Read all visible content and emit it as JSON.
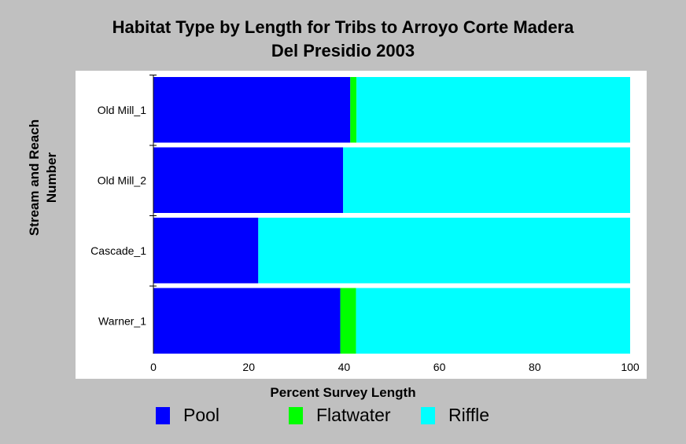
{
  "chart_data": {
    "type": "bar",
    "orientation": "horizontal",
    "stacked": true,
    "title": [
      "Habitat Type by Length for Tribs to Arroyo Corte Madera",
      "Del Presidio 2003"
    ],
    "xlabel": "Percent Survey Length",
    "ylabel": [
      "Stream and Reach",
      "Number"
    ],
    "xlim": [
      0,
      100
    ],
    "xticks": [
      "0",
      "20",
      "40",
      "60",
      "80",
      "100"
    ],
    "categories": [
      "Old Mill_1",
      "Old Mill_2",
      "Cascade_1",
      "Warner_1"
    ],
    "series": [
      {
        "name": "Pool",
        "color": "#0000ff",
        "values": [
          41.3,
          39.8,
          22.0,
          39.2
        ]
      },
      {
        "name": "Flatwater",
        "color": "#00ff00",
        "values": [
          1.3,
          0.0,
          0.0,
          3.3
        ]
      },
      {
        "name": "Riffle",
        "color": "#00ffff",
        "values": [
          57.4,
          60.2,
          78.0,
          57.5
        ]
      }
    ],
    "grid": false,
    "legend_position": "bottom"
  }
}
